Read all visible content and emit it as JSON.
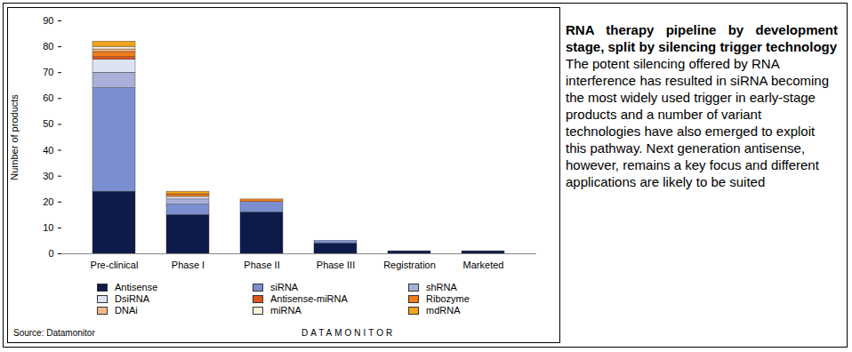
{
  "chart_data": {
    "type": "bar",
    "stacked": true,
    "title": "RNA therapy pipeline by development stage, split by silencing trigger technology",
    "subtitle": "The potent silencing offered by RNA interference has resulted in siRNA becoming the most widely used trigger in early-stage products and a number of variant technologies have also emerged to exploit this pathway. Next generation antisense, however, remains a key focus and different applications are likely to be suited",
    "source": "Source: Datamonitor",
    "annotations": [
      "DATAMONITOR"
    ],
    "y_label": "Number of products",
    "categories": [
      "Pre-clinical",
      "Phase I",
      "Phase II",
      "Phase III",
      "Registration",
      "Marketed"
    ],
    "ylim": [
      0,
      90
    ],
    "yticks": [
      0,
      10,
      20,
      30,
      40,
      50,
      60,
      70,
      80,
      90
    ],
    "grid": false,
    "legend": "bottom",
    "series": [
      {
        "name": "Antisense",
        "color": "#0d1b4a",
        "values": [
          24,
          15,
          16,
          4,
          1,
          1
        ]
      },
      {
        "name": "siRNA",
        "color": "#7b8fd0",
        "values": [
          40,
          4,
          4,
          1,
          0,
          0
        ]
      },
      {
        "name": "shRNA",
        "color": "#a9b0d9",
        "values": [
          6,
          2,
          0,
          0,
          0,
          0
        ]
      },
      {
        "name": "DsiRNA",
        "color": "#dde3f3",
        "values": [
          5,
          1,
          0,
          0,
          0,
          0
        ]
      },
      {
        "name": "Antisense-miRNA",
        "color": "#e0531f",
        "values": [
          1,
          0,
          0,
          0,
          0,
          0
        ]
      },
      {
        "name": "Ribozyme",
        "color": "#f07c1a",
        "values": [
          2,
          1,
          1,
          0,
          0,
          0
        ]
      },
      {
        "name": "DNAi",
        "color": "#f7b98a",
        "values": [
          1,
          0,
          0,
          0,
          0,
          0
        ]
      },
      {
        "name": "miRNA",
        "color": "#fbf0d8",
        "values": [
          1,
          0,
          0,
          0,
          0,
          0
        ]
      },
      {
        "name": "mdRNA",
        "color": "#f2a51a",
        "values": [
          2,
          1,
          0,
          0,
          0,
          0
        ]
      }
    ]
  }
}
